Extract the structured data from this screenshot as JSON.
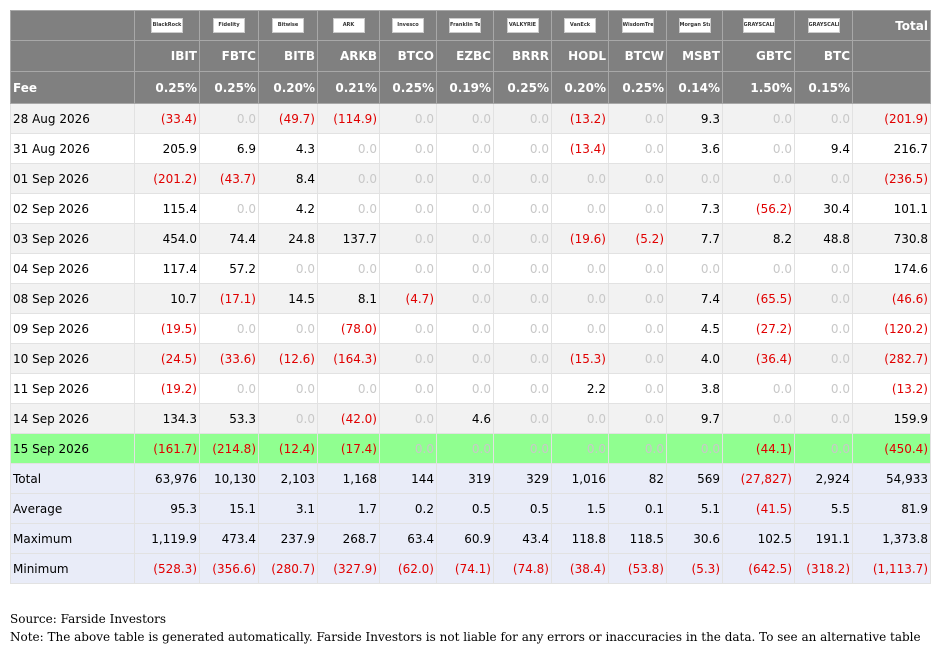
{
  "header": {
    "logos": [
      "BlackRock",
      "Fidelity",
      "Bitwise",
      "ARK",
      "Invesco",
      "Franklin Templeton",
      "VALKYRIE",
      "VanEck",
      "WisdomTree",
      "Morgan Stanley",
      "GRAYSCALE",
      "GRAYSCALE"
    ],
    "total_label": "Total",
    "tickers": [
      "IBIT",
      "FBTC",
      "BITB",
      "ARKB",
      "BTCO",
      "EZBC",
      "BRRR",
      "HODL",
      "BTCW",
      "MSBT",
      "GBTC",
      "BTC"
    ]
  },
  "fee": {
    "label": "Fee",
    "values": [
      "0.25%",
      "0.25%",
      "0.20%",
      "0.21%",
      "0.25%",
      "0.19%",
      "0.25%",
      "0.20%",
      "0.25%",
      "0.14%",
      "1.50%",
      "0.15%"
    ]
  },
  "rows": [
    {
      "date": "28 Aug 2026",
      "values": [
        "(33.4)",
        "0.0",
        "(49.7)",
        "(114.9)",
        "0.0",
        "0.0",
        "0.0",
        "(13.2)",
        "0.0",
        "9.3",
        "0.0",
        "0.0",
        "(201.9)"
      ]
    },
    {
      "date": "31 Aug 2026",
      "values": [
        "205.9",
        "6.9",
        "4.3",
        "0.0",
        "0.0",
        "0.0",
        "0.0",
        "(13.4)",
        "0.0",
        "3.6",
        "0.0",
        "9.4",
        "216.7"
      ]
    },
    {
      "date": "01 Sep 2026",
      "values": [
        "(201.2)",
        "(43.7)",
        "8.4",
        "0.0",
        "0.0",
        "0.0",
        "0.0",
        "0.0",
        "0.0",
        "0.0",
        "0.0",
        "0.0",
        "(236.5)"
      ]
    },
    {
      "date": "02 Sep 2026",
      "values": [
        "115.4",
        "0.0",
        "4.2",
        "0.0",
        "0.0",
        "0.0",
        "0.0",
        "0.0",
        "0.0",
        "7.3",
        "(56.2)",
        "30.4",
        "101.1"
      ]
    },
    {
      "date": "03 Sep 2026",
      "values": [
        "454.0",
        "74.4",
        "24.8",
        "137.7",
        "0.0",
        "0.0",
        "0.0",
        "(19.6)",
        "(5.2)",
        "7.7",
        "8.2",
        "48.8",
        "730.8"
      ]
    },
    {
      "date": "04 Sep 2026",
      "values": [
        "117.4",
        "57.2",
        "0.0",
        "0.0",
        "0.0",
        "0.0",
        "0.0",
        "0.0",
        "0.0",
        "0.0",
        "0.0",
        "0.0",
        "174.6"
      ]
    },
    {
      "date": "08 Sep 2026",
      "values": [
        "10.7",
        "(17.1)",
        "14.5",
        "8.1",
        "(4.7)",
        "0.0",
        "0.0",
        "0.0",
        "0.0",
        "7.4",
        "(65.5)",
        "0.0",
        "(46.6)"
      ]
    },
    {
      "date": "09 Sep 2026",
      "values": [
        "(19.5)",
        "0.0",
        "0.0",
        "(78.0)",
        "0.0",
        "0.0",
        "0.0",
        "0.0",
        "0.0",
        "4.5",
        "(27.2)",
        "0.0",
        "(120.2)"
      ]
    },
    {
      "date": "10 Sep 2026",
      "values": [
        "(24.5)",
        "(33.6)",
        "(12.6)",
        "(164.3)",
        "0.0",
        "0.0",
        "0.0",
        "(15.3)",
        "0.0",
        "4.0",
        "(36.4)",
        "0.0",
        "(282.7)"
      ]
    },
    {
      "date": "11 Sep 2026",
      "values": [
        "(19.2)",
        "0.0",
        "0.0",
        "0.0",
        "0.0",
        "0.0",
        "0.0",
        "2.2",
        "0.0",
        "3.8",
        "0.0",
        "0.0",
        "(13.2)"
      ]
    },
    {
      "date": "14 Sep 2026",
      "values": [
        "134.3",
        "53.3",
        "0.0",
        "(42.0)",
        "0.0",
        "4.6",
        "0.0",
        "0.0",
        "0.0",
        "9.7",
        "0.0",
        "0.0",
        "159.9"
      ]
    },
    {
      "date": "15 Sep 2026",
      "highlight": true,
      "values": [
        "(161.7)",
        "(214.8)",
        "(12.4)",
        "(17.4)",
        "0.0",
        "0.0",
        "0.0",
        "0.0",
        "0.0",
        "0.0",
        "(44.1)",
        "0.0",
        "(450.4)"
      ]
    }
  ],
  "summary": [
    {
      "label": "Total",
      "values": [
        "63,976",
        "10,130",
        "2,103",
        "1,168",
        "144",
        "319",
        "329",
        "1,016",
        "82",
        "569",
        "(27,827)",
        "2,924",
        "54,933"
      ]
    },
    {
      "label": "Average",
      "values": [
        "95.3",
        "15.1",
        "3.1",
        "1.7",
        "0.2",
        "0.5",
        "0.5",
        "1.5",
        "0.1",
        "5.1",
        "(41.5)",
        "5.5",
        "81.9"
      ]
    },
    {
      "label": "Maximum",
      "values": [
        "1,119.9",
        "473.4",
        "237.9",
        "268.7",
        "63.4",
        "60.9",
        "43.4",
        "118.8",
        "118.5",
        "30.6",
        "102.5",
        "191.1",
        "1,373.8"
      ]
    },
    {
      "label": "Minimum",
      "values": [
        "(528.3)",
        "(356.6)",
        "(280.7)",
        "(327.9)",
        "(62.0)",
        "(74.1)",
        "(74.8)",
        "(38.4)",
        "(53.8)",
        "(5.3)",
        "(642.5)",
        "(318.2)",
        "(1,113.7)"
      ]
    }
  ],
  "footer": {
    "source": "Source: Farside Investors",
    "note": "Note: The above table is generated automatically. Farside Investors is not liable for any errors or inaccuracies in the data. To see an alternative table"
  }
}
